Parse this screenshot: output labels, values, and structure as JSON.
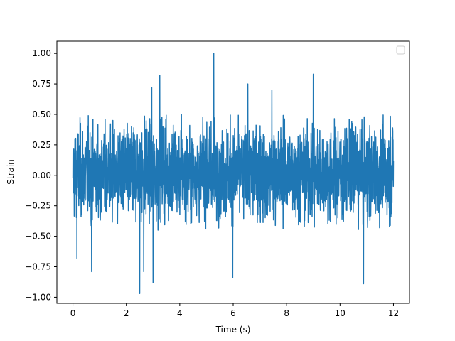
{
  "chart_data": {
    "type": "line",
    "title": "",
    "xlabel": "Time (s)",
    "ylabel": "Strain",
    "xlim": [
      -0.6,
      12.6
    ],
    "ylim": [
      -1.05,
      1.1
    ],
    "xticks": [
      0,
      2,
      4,
      6,
      8,
      10,
      12
    ],
    "xtick_labels": [
      "0",
      "2",
      "4",
      "6",
      "8",
      "10",
      "12"
    ],
    "yticks": [
      -1.0,
      -0.75,
      -0.5,
      -0.25,
      0.0,
      0.25,
      0.5,
      0.75,
      1.0
    ],
    "ytick_labels": [
      "−1.00",
      "−0.75",
      "−0.50",
      "−0.25",
      "0.00",
      "0.25",
      "0.50",
      "0.75",
      "1.00"
    ],
    "grid": false,
    "legend": {
      "position": "upper-right",
      "entries": []
    },
    "series": [
      {
        "color": "#1f77b4",
        "x_range": [
          0,
          12
        ],
        "sample_count": 2400,
        "typical_range": [
          -0.45,
          0.5
        ],
        "extreme_points": [
          {
            "x": 5.27,
            "y": 1.0
          },
          {
            "x": 2.5,
            "y": -0.97
          },
          {
            "x": 9.0,
            "y": 0.83
          },
          {
            "x": 3.25,
            "y": 0.82
          },
          {
            "x": 2.65,
            "y": -0.79
          },
          {
            "x": 0.7,
            "y": -0.79
          },
          {
            "x": 3.0,
            "y": -0.88
          },
          {
            "x": 5.98,
            "y": -0.84
          },
          {
            "x": 10.88,
            "y": -0.89
          },
          {
            "x": 6.55,
            "y": 0.75
          },
          {
            "x": 2.95,
            "y": 0.72
          },
          {
            "x": 0.15,
            "y": -0.68
          },
          {
            "x": 7.45,
            "y": 0.7
          }
        ]
      }
    ]
  }
}
